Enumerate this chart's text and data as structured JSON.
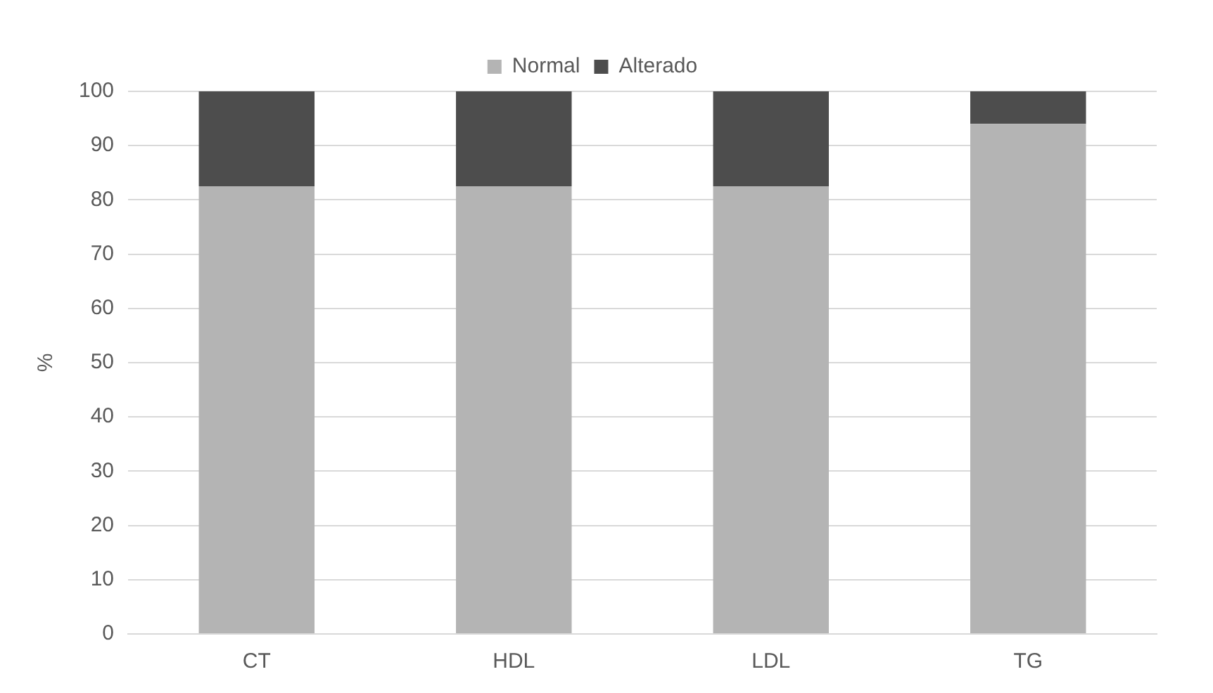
{
  "chart_data": {
    "type": "bar",
    "stacked": true,
    "ylabel": "%",
    "categories": [
      "CT",
      "HDL",
      "LDL",
      "TG"
    ],
    "series": [
      {
        "name": "Normal",
        "color": "#b4b4b4",
        "values": [
          82.5,
          82.5,
          82.5,
          94
        ]
      },
      {
        "name": "Alterado",
        "color": "#4d4d4d",
        "values": [
          17.5,
          17.5,
          17.5,
          6
        ]
      }
    ],
    "ylim": [
      0,
      100
    ],
    "yticks": [
      0,
      10,
      20,
      30,
      40,
      50,
      60,
      70,
      80,
      90,
      100
    ],
    "grid": "y",
    "legend": "top"
  }
}
